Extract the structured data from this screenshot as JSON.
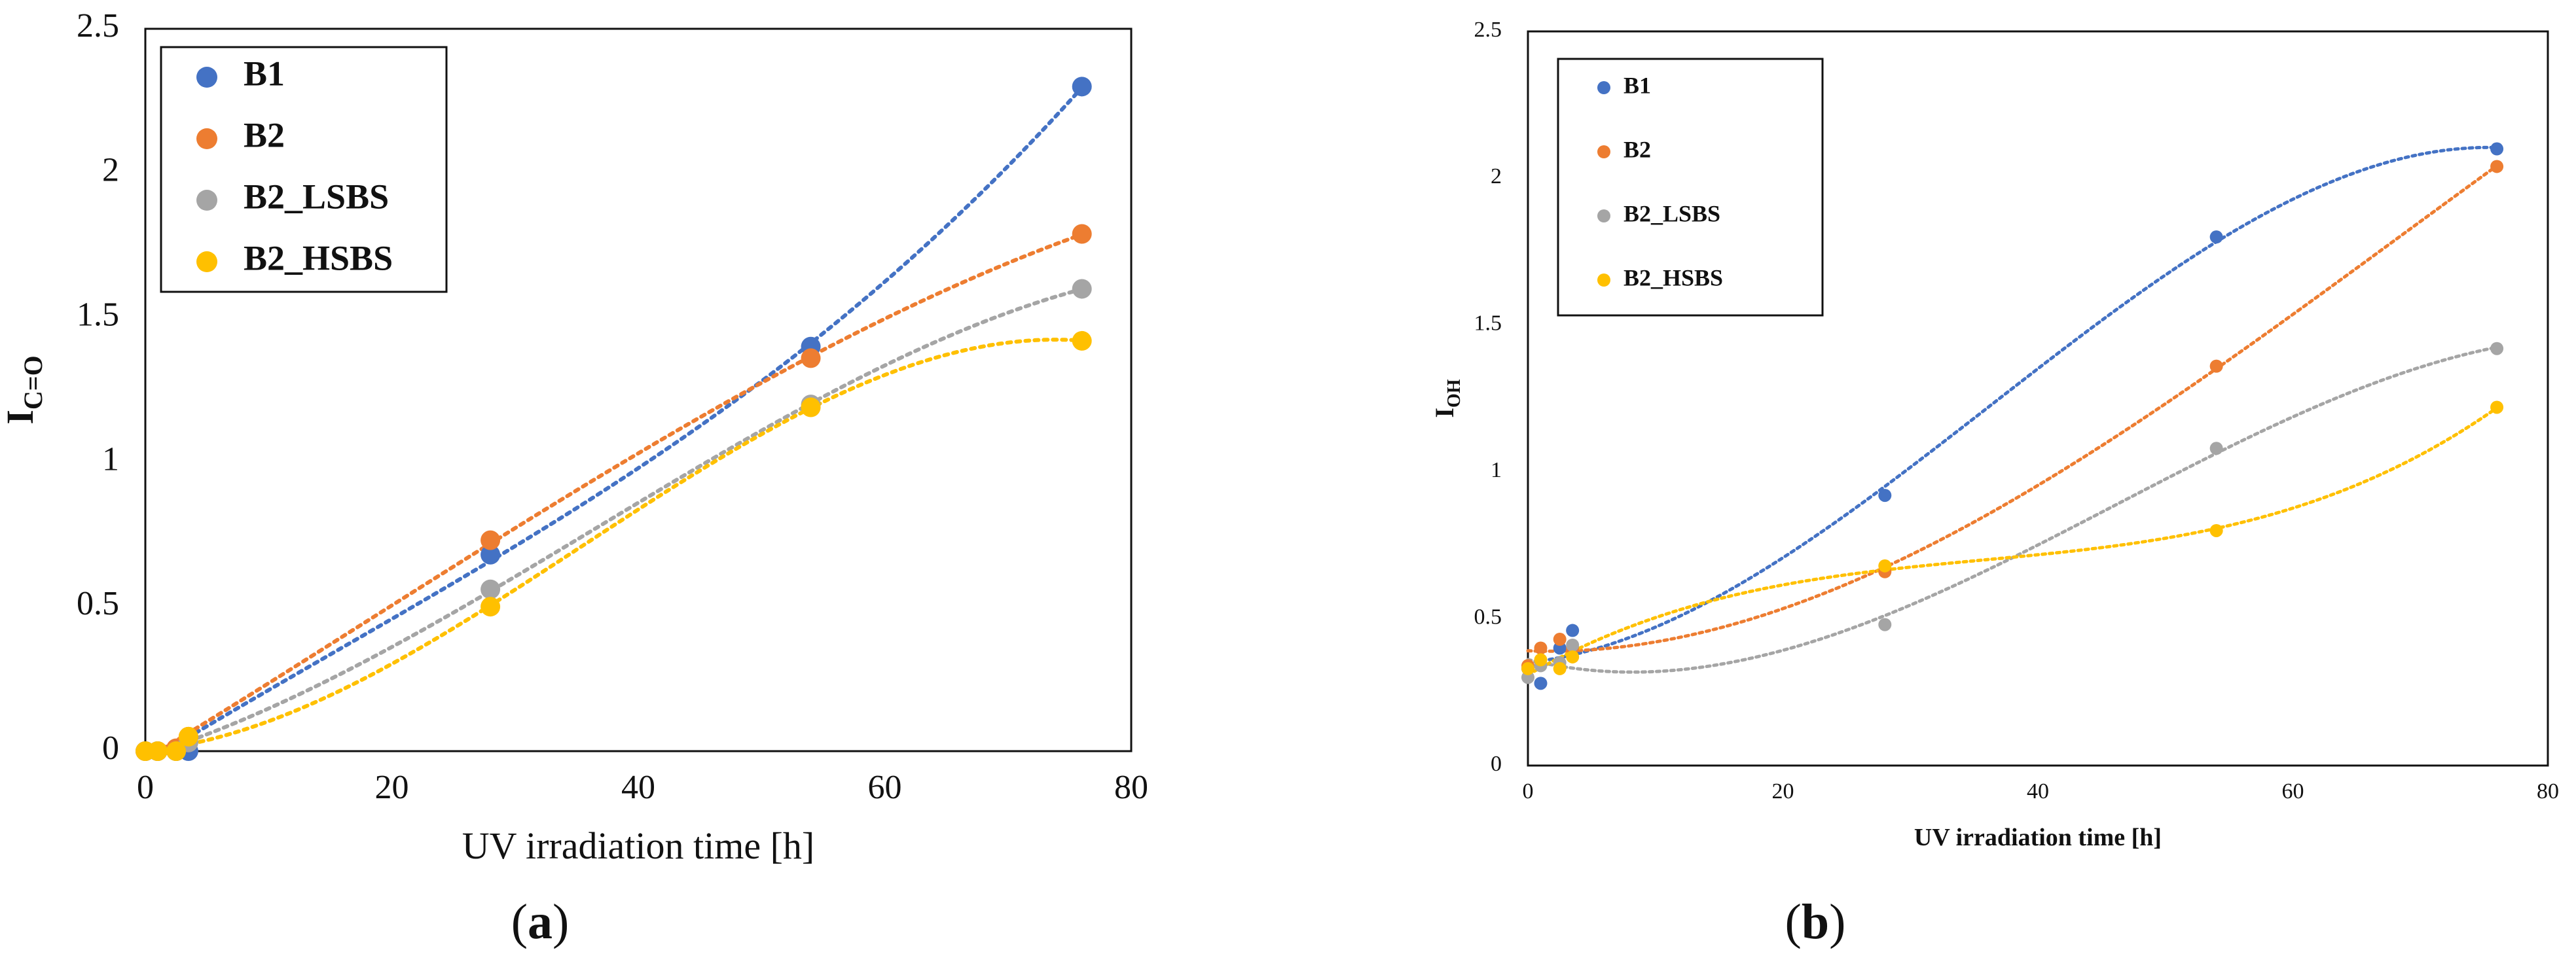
{
  "chart_data": [
    {
      "id": "a",
      "type": "scatter",
      "caption_letter": "a",
      "xlabel": "UV irradiation time [h]",
      "ylabel_main": "I",
      "ylabel_sub": "C=O",
      "xlim": [
        0,
        80
      ],
      "ylim": [
        0,
        2.5
      ],
      "xticks": [
        "0",
        "20",
        "40",
        "60",
        "80"
      ],
      "yticks": [
        "0",
        "0.5",
        "1",
        "1.5",
        "2",
        "2.5"
      ],
      "grid": false,
      "legend_position": "top-left",
      "trendline": "dotted polynomial",
      "series": [
        {
          "name": "B1",
          "color": "#4472C4",
          "x": [
            0,
            1,
            2.5,
            3.5,
            28,
            54,
            76
          ],
          "y": [
            0,
            0,
            0,
            0,
            0.68,
            1.4,
            2.3
          ]
        },
        {
          "name": "B2",
          "color": "#ED7D31",
          "x": [
            0,
            1,
            2.5,
            3.5,
            28,
            54,
            76
          ],
          "y": [
            0,
            0,
            0.01,
            0.05,
            0.73,
            1.36,
            1.79
          ]
        },
        {
          "name": "B2_LSBS",
          "color": "#A5A5A5",
          "x": [
            0,
            1,
            2.5,
            3.5,
            28,
            54,
            76
          ],
          "y": [
            0,
            0,
            0,
            0.03,
            0.56,
            1.2,
            1.6
          ]
        },
        {
          "name": "B2_HSBS",
          "color": "#FFC000",
          "x": [
            0,
            1,
            2.5,
            3.5,
            28,
            54,
            76
          ],
          "y": [
            0,
            0,
            0,
            0.05,
            0.5,
            1.19,
            1.42
          ]
        }
      ]
    },
    {
      "id": "b",
      "type": "scatter",
      "caption_letter": "b",
      "xlabel": "UV irradiation time [h]",
      "ylabel_main": "I",
      "ylabel_sub": "OH",
      "xlim": [
        0,
        80
      ],
      "ylim": [
        0,
        2.5
      ],
      "xticks": [
        "0",
        "20",
        "40",
        "60",
        "80"
      ],
      "yticks": [
        "0",
        "0.5",
        "1",
        "1.5",
        "2",
        "2.5"
      ],
      "grid": false,
      "legend_position": "top-left",
      "trendline": "dotted polynomial",
      "series": [
        {
          "name": "B1",
          "color": "#4472C4",
          "x": [
            0,
            1,
            2.5,
            3.5,
            28,
            54,
            76
          ],
          "y": [
            0.33,
            0.28,
            0.4,
            0.46,
            0.92,
            1.8,
            2.1
          ]
        },
        {
          "name": "B2",
          "color": "#ED7D31",
          "x": [
            0,
            1,
            2.5,
            3.5,
            28,
            54,
            76
          ],
          "y": [
            0.34,
            0.4,
            0.43,
            0.4,
            0.66,
            1.36,
            2.04
          ]
        },
        {
          "name": "B2_LSBS",
          "color": "#A5A5A5",
          "x": [
            0,
            1,
            2.5,
            3.5,
            28,
            54,
            76
          ],
          "y": [
            0.3,
            0.34,
            0.35,
            0.41,
            0.48,
            1.08,
            1.42
          ]
        },
        {
          "name": "B2_HSBS",
          "color": "#FFC000",
          "x": [
            0,
            1,
            2.5,
            3.5,
            28,
            54,
            76
          ],
          "y": [
            0.33,
            0.36,
            0.33,
            0.37,
            0.68,
            0.8,
            1.22
          ]
        }
      ]
    }
  ]
}
